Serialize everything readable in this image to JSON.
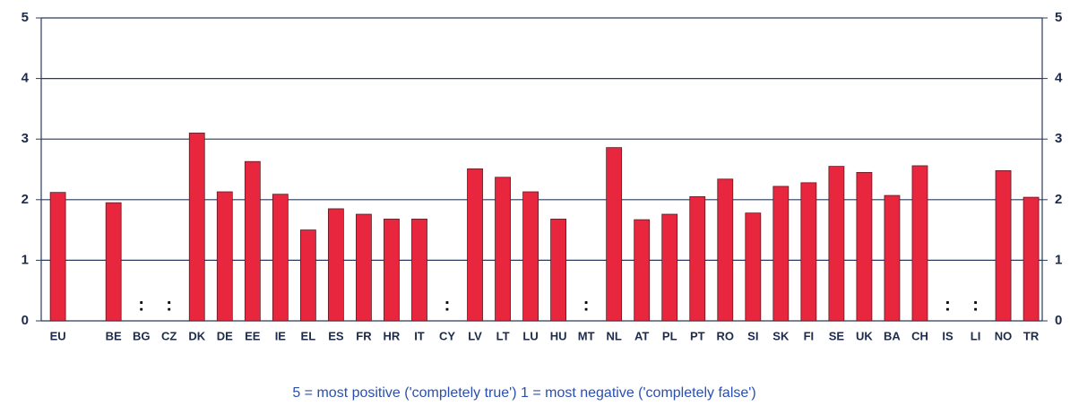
{
  "chart_data": {
    "type": "bar",
    "categories": [
      "EU",
      null,
      "BE",
      "BG",
      "CZ",
      "DK",
      "DE",
      "EE",
      "IE",
      "EL",
      "ES",
      "FR",
      "HR",
      "IT",
      "CY",
      "LV",
      "LT",
      "LU",
      "HU",
      "MT",
      "NL",
      "AT",
      "PL",
      "PT",
      "RO",
      "SI",
      "SK",
      "FI",
      "SE",
      "UK",
      "BA",
      "CH",
      "IS",
      "LI",
      "NO",
      "TR"
    ],
    "values": [
      2.12,
      null,
      1.95,
      null,
      null,
      3.1,
      2.13,
      2.63,
      2.09,
      1.5,
      1.85,
      1.76,
      1.68,
      1.68,
      null,
      2.51,
      2.37,
      2.13,
      1.68,
      null,
      2.86,
      1.67,
      1.76,
      2.05,
      2.34,
      1.78,
      2.22,
      2.28,
      2.55,
      2.45,
      2.07,
      2.56,
      null,
      null,
      2.48,
      2.04
    ],
    "value_labels": [
      null,
      null,
      null,
      ":",
      ":",
      null,
      null,
      null,
      null,
      null,
      null,
      null,
      null,
      null,
      ":",
      null,
      null,
      null,
      null,
      ":",
      null,
      null,
      null,
      null,
      null,
      null,
      null,
      null,
      null,
      null,
      null,
      null,
      ":",
      ":",
      null,
      null
    ],
    "color": "#e8273f",
    "ylim": [
      0,
      5
    ],
    "yticks": [
      0,
      1,
      2,
      3,
      4,
      5
    ],
    "grid": true,
    "note": "5 = most positive ('completely true') 1 = most negative ('completely false')"
  }
}
